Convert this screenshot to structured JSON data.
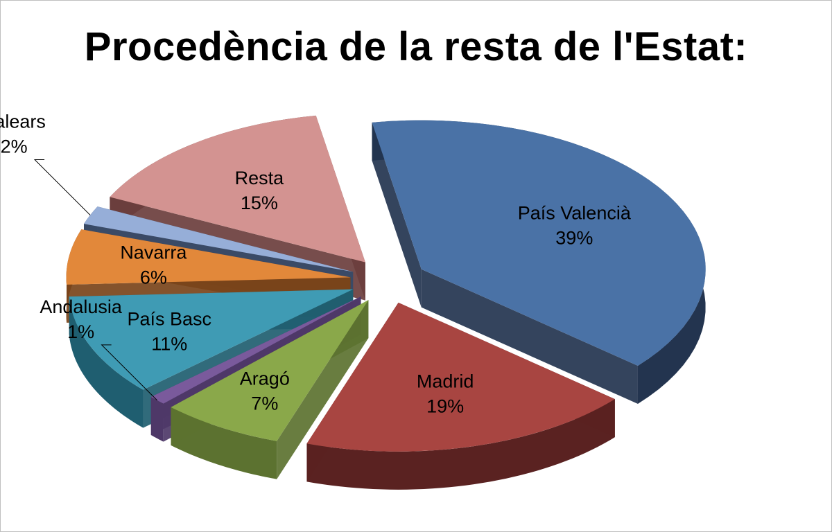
{
  "chart_data": {
    "type": "pie",
    "title": "Procedència de la resta de l'Estat:",
    "slices": [
      {
        "label": "País Valencià",
        "value": 39,
        "display": "39%",
        "color": "#4a72a6",
        "side": "#23344f",
        "text": "#000000"
      },
      {
        "label": "Madrid",
        "value": 19,
        "display": "19%",
        "color": "#a84541",
        "side": "#5a2221",
        "text": "#000000"
      },
      {
        "label": "Aragó",
        "value": 7,
        "display": "7%",
        "color": "#8aa84a",
        "side": "#5c7230",
        "text": "#000000"
      },
      {
        "label": "Andalusia",
        "value": 1,
        "display": "1%",
        "color": "#7a5a9c",
        "side": "#4e3868",
        "text": "#000000"
      },
      {
        "label": "País Basc",
        "value": 11,
        "display": "11%",
        "color": "#3f9bb4",
        "side": "#1f5e70",
        "text": "#000000"
      },
      {
        "label": "Navarra",
        "value": 6,
        "display": "6%",
        "color": "#e2883a",
        "side": "#7a441a",
        "text": "#000000"
      },
      {
        "label": "Balears",
        "value": 2,
        "display": "2%",
        "color": "#96aed8",
        "side": "#3a4a66",
        "text": "#000000"
      },
      {
        "label": "Resta",
        "value": 15,
        "display": "15%",
        "color": "#d39391",
        "side": "#6b3e3d",
        "text": "#000000"
      }
    ],
    "legend": "none",
    "labels": "category-and-percent"
  }
}
